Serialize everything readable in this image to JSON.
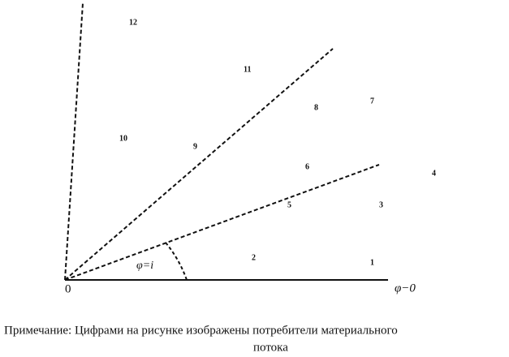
{
  "diagram": {
    "origin_label": "0",
    "angle_label": "φ=i",
    "axis_label": "φ−0",
    "consumers": [
      "1",
      "2",
      "3",
      "4",
      "5",
      "6",
      "7",
      "8",
      "9",
      "10",
      "11",
      "12"
    ]
  },
  "caption": {
    "lines": [
      "Примечание: Цифрами на рисунке изображены потребители материального",
      "потока"
    ]
  }
}
